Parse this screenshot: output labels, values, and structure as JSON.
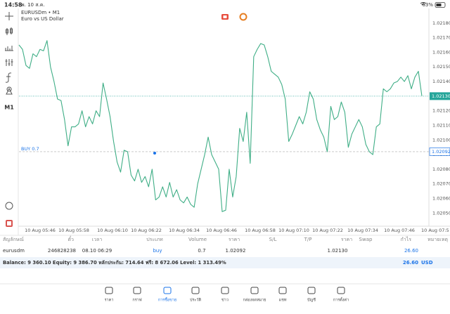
{
  "status_bar": {
    "time": "14:58",
    "date": "พ. 10 ส.ค.",
    "battery": "63%"
  },
  "toolbar": {
    "timeframe": "M1"
  },
  "chart_data": {
    "type": "line",
    "title": "EURUSDm • M1",
    "subtitle": "Euro vs US Dollar",
    "color": "#3fae86",
    "values": [
      1.02165,
      1.02162,
      1.02151,
      1.02149,
      1.02159,
      1.02157,
      1.02162,
      1.02161,
      1.02168,
      1.0215,
      1.0214,
      1.02128,
      1.02127,
      1.02114,
      1.02096,
      1.02109,
      1.02109,
      1.02111,
      1.0212,
      1.02109,
      1.02116,
      1.02111,
      1.0212,
      1.02116,
      1.02139,
      1.02128,
      1.02116,
      1.02099,
      1.02085,
      1.02078,
      1.02093,
      1.02092,
      1.02076,
      1.02072,
      1.0208,
      1.02071,
      1.02075,
      1.02068,
      1.0208,
      1.02059,
      1.02061,
      1.02068,
      1.02061,
      1.02071,
      1.02061,
      1.02066,
      1.02059,
      1.02057,
      1.02061,
      1.02056,
      1.02054,
      1.0207,
      1.0208,
      1.0209,
      1.02102,
      1.0209,
      1.02085,
      1.0208,
      1.02051,
      1.02052,
      1.0208,
      1.02061,
      1.02075,
      1.02108,
      1.02099,
      1.02119,
      1.02084,
      1.02157,
      1.02162,
      1.02166,
      1.02165,
      1.02157,
      1.02147,
      1.02145,
      1.02143,
      1.02138,
      1.02128,
      1.02099,
      1.02104,
      1.0211,
      1.02116,
      1.02111,
      1.02119,
      1.02133,
      1.02128,
      1.02114,
      1.02107,
      1.02102,
      1.02092,
      1.02123,
      1.02114,
      1.02116,
      1.02126,
      1.02119,
      1.02095,
      1.02104,
      1.02109,
      1.02114,
      1.02109,
      1.02097,
      1.02092,
      1.0209,
      1.02109,
      1.02111,
      1.02135,
      1.02133,
      1.02135,
      1.02139,
      1.0214,
      1.02143,
      1.0214,
      1.02144,
      1.02135,
      1.02143,
      1.02147,
      1.0213
    ],
    "ylim": [
      1.02042,
      1.0219
    ],
    "yticks": [
      {
        "value": 1.0218,
        "label": "1.02180"
      },
      {
        "value": 1.0217,
        "label": "1.02170"
      },
      {
        "value": 1.0216,
        "label": "1.02160"
      },
      {
        "value": 1.0215,
        "label": "1.02150"
      },
      {
        "value": 1.0214,
        "label": "1.02140"
      },
      {
        "value": 1.0213,
        "label": "1.02130"
      },
      {
        "value": 1.0212,
        "label": "1.02120"
      },
      {
        "value": 1.0211,
        "label": "1.02110"
      },
      {
        "value": 1.021,
        "label": "1.02100"
      },
      {
        "value": 1.0209,
        "label": "1.02090"
      },
      {
        "value": 1.0208,
        "label": "1.02080"
      },
      {
        "value": 1.0207,
        "label": "1.02070"
      },
      {
        "value": 1.0206,
        "label": "1.02060"
      },
      {
        "value": 1.0205,
        "label": "1.02050"
      }
    ],
    "time_labels": [
      "10 Aug 05:46",
      "10 Aug 05:58",
      "10 Aug 06:10",
      "10 Aug 06:22",
      "10 Aug 06:34",
      "10 Aug 06:46",
      "10 Aug 06:58",
      "10 Aug 07:10",
      "10 Aug 07:22",
      "10 Aug 07:34",
      "10 Aug 07:46",
      "10 Aug 07:5"
    ],
    "current_price": {
      "value": 1.0213,
      "label": "1.02130"
    },
    "position": {
      "label": "BUY 0.7",
      "value": 1.02092,
      "value_label": "1.02092"
    }
  },
  "table": {
    "headers": [
      "สัญลักษณ์",
      "ตั๋ว",
      "เวลา",
      "ประเภท",
      "Volume",
      "ราคา",
      "S/L",
      "T/P",
      "ราคา",
      "Swap",
      "กำไร",
      "หมายเหตุ"
    ],
    "row": {
      "symbol": "eurusdm",
      "ticket": "246828238",
      "time": "08.10 06:29",
      "type": "buy",
      "volume": "0.7",
      "open_price": "1.02092",
      "price": "1.02130",
      "profit": "26.60"
    },
    "summary": {
      "text": "Balance: 9 360.10 Equity: 9 386.70 หลักประกัน: 714.64 ฟรี: 8 672.06 Level: 1 313.49%",
      "profit": "26.60",
      "currency": "USD"
    }
  },
  "nav": [
    "ราคา",
    "กราฟ",
    "การซื้อขาย",
    "ประวัติ",
    "ข่าว",
    "กล่องจดหมาย",
    "แชท",
    "บัญชี",
    "การตั้งค่า"
  ]
}
